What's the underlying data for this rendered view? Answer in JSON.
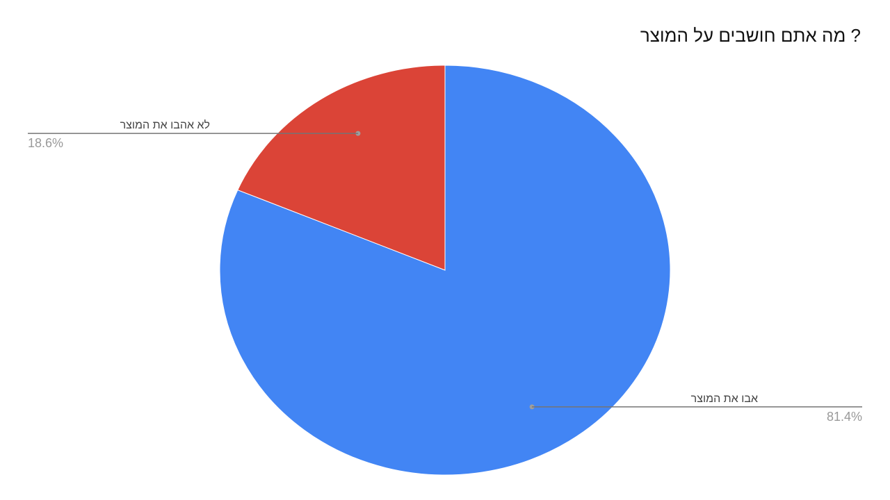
{
  "chart_data": {
    "type": "pie",
    "title": "? מה אתם חושבים על המוצר",
    "slices": [
      {
        "label": "אבו את המוצר",
        "value": 81.4,
        "value_label": "81.4%",
        "color": "#4285f4"
      },
      {
        "label": "לא אהבו את המוצר",
        "value": 18.6,
        "value_label": "18.6%",
        "color": "#db4437"
      }
    ],
    "leader_line_color": "#757575"
  }
}
